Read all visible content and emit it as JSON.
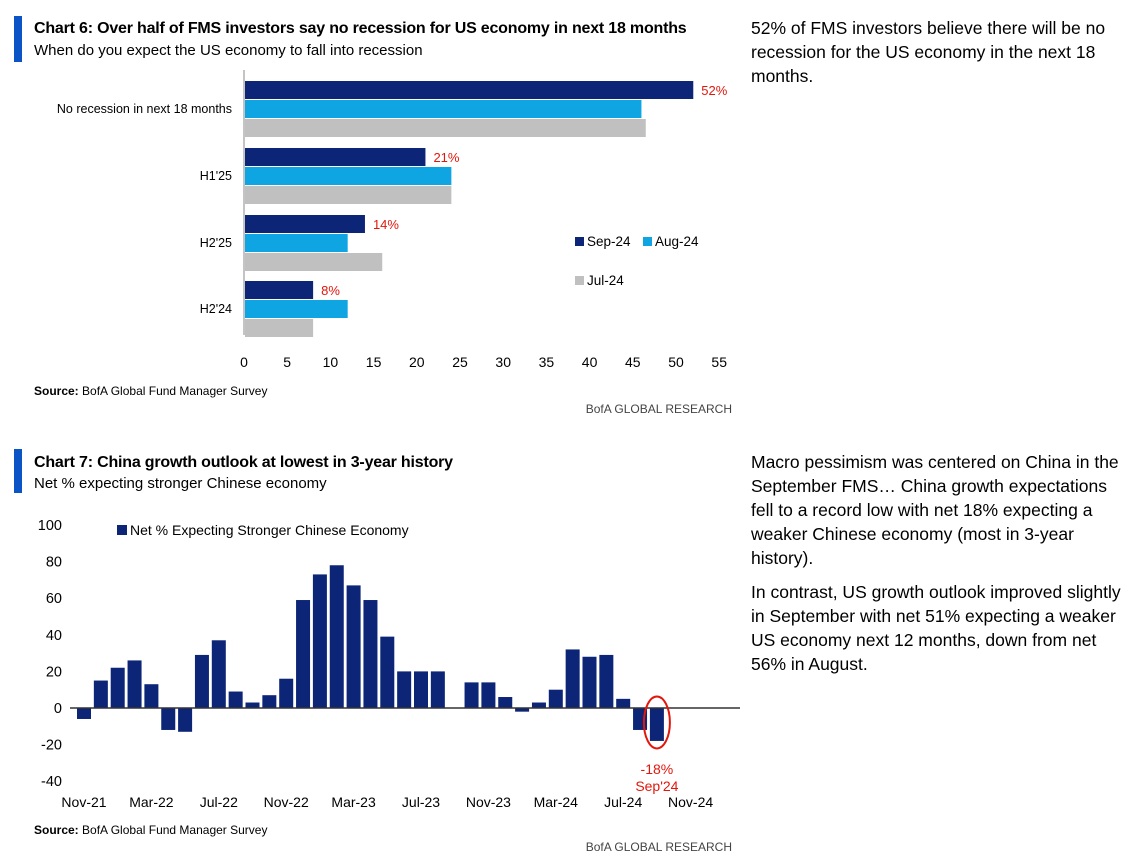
{
  "colors": {
    "accent": "#0a54c6",
    "sep24": "#0c2577",
    "aug24": "#0ea5e2",
    "jul24": "#c0c0c0",
    "china_bar": "#0c2577",
    "highlight": "#e3160c"
  },
  "chart6": {
    "title": "Chart 6: Over half of FMS investors say no recession for US economy in next 18 months",
    "subtitle": "When do you expect the US economy to fall into recession",
    "source_label": "Source:",
    "source_text": "BofA Global Fund Manager Survey",
    "brand": "BofA GLOBAL RESEARCH"
  },
  "chart7": {
    "title": "Chart 7: China growth outlook at lowest in 3-year history",
    "subtitle": "Net % expecting stronger Chinese economy",
    "source_label": "Source:",
    "source_text": "BofA Global Fund Manager Survey",
    "brand": "BofA GLOBAL RESEARCH"
  },
  "commentary": {
    "chart6_text": "52% of FMS investors believe there will be no recession for the US economy in the next 18 months.",
    "chart7_p1": "Macro pessimism was centered on China in the September FMS… China growth expectations fell to a record low with net 18% expecting a weaker Chinese economy (most in 3-year history).",
    "chart7_p2": "In contrast, US growth outlook improved slightly in September with net 51% expecting a weaker US economy next 12 months, down from net 56% in August."
  },
  "chart_data": [
    {
      "type": "bar",
      "orientation": "horizontal",
      "categories": [
        "No recession in next 18 months",
        "H1'25",
        "H2'25",
        "H2'24"
      ],
      "series": [
        {
          "name": "Sep-24",
          "values": [
            52,
            21,
            14,
            8
          ]
        },
        {
          "name": "Aug-24",
          "values": [
            46,
            24,
            12,
            12
          ]
        },
        {
          "name": "Jul-24",
          "values": [
            46.5,
            24,
            16,
            8
          ]
        }
      ],
      "data_labels": [
        "52%",
        "21%",
        "14%",
        "8%"
      ],
      "xlim": [
        0,
        55
      ],
      "xticks": [
        0,
        5,
        10,
        15,
        20,
        25,
        30,
        35,
        40,
        45,
        50,
        55
      ],
      "legend": "right",
      "grid": false
    },
    {
      "type": "bar",
      "x": [
        "Nov-21",
        "Dec-21",
        "Jan-22",
        "Feb-22",
        "Mar-22",
        "Apr-22",
        "May-22",
        "Jun-22",
        "Jul-22",
        "Aug-22",
        "Sep-22",
        "Oct-22",
        "Nov-22",
        "Dec-22",
        "Jan-23",
        "Feb-23",
        "Mar-23",
        "Apr-23",
        "May-23",
        "Jun-23",
        "Jul-23",
        "Aug-23",
        "Sep-23",
        "Oct-23",
        "Nov-23",
        "Dec-23",
        "Jan-24",
        "Feb-24",
        "Mar-24",
        "Apr-24",
        "May-24",
        "Jun-24",
        "Jul-24",
        "Aug-24",
        "Sep-24"
      ],
      "series": [
        {
          "name": "Net % Expecting Stronger Chinese Economy",
          "values": [
            -6,
            15,
            22,
            26,
            13,
            -12,
            -13,
            29,
            37,
            9,
            3,
            7,
            16,
            59,
            73,
            78,
            67,
            59,
            39,
            20,
            20,
            20,
            null,
            14,
            14,
            6,
            -2,
            3,
            10,
            32,
            28,
            29,
            5,
            -12,
            -18
          ]
        }
      ],
      "xticks": [
        "Nov-21",
        "Mar-22",
        "Jul-22",
        "Nov-22",
        "Mar-23",
        "Jul-23",
        "Nov-23",
        "Mar-24",
        "Jul-24",
        "Nov-24"
      ],
      "yticks": [
        100,
        80,
        60,
        40,
        20,
        0,
        -20,
        -40
      ],
      "ylim": [
        -40,
        100
      ],
      "annotation": {
        "value_label": "-18%",
        "date_label": "Sep'24"
      },
      "legend": "top-left",
      "grid": false
    }
  ]
}
